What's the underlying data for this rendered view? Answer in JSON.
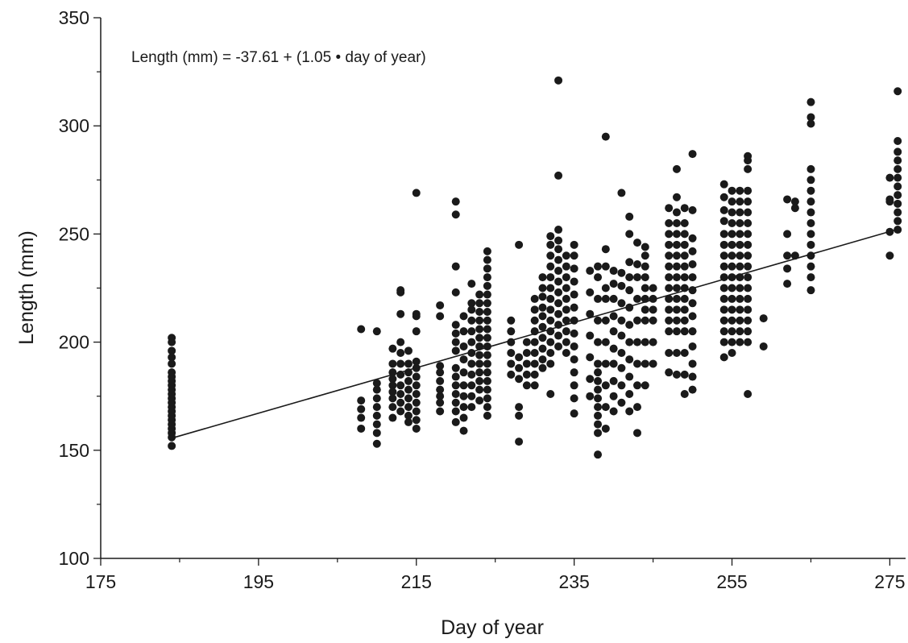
{
  "chart_data": {
    "type": "scatter",
    "title": "",
    "xlabel": "Day of year",
    "ylabel": "Length (mm)",
    "xlim": [
      175,
      277
    ],
    "ylim": [
      100,
      350
    ],
    "x_ticks": [
      175,
      195,
      215,
      235,
      255,
      275
    ],
    "x_ticks_display": [
      "175",
      "195",
      "215",
      "235",
      "255",
      "275"
    ],
    "y_ticks": [
      100,
      150,
      200,
      250,
      300,
      350
    ],
    "y_ticks_display": [
      "100",
      "150",
      "200",
      "250",
      "300",
      "350"
    ],
    "grid": false,
    "annotation": "Length (mm) = -37.61 + (1.05 • day of year)",
    "regression": {
      "intercept": -37.61,
      "slope": 1.05,
      "x_range": [
        184,
        276
      ]
    },
    "marker_color": "#1a1a1a",
    "groups": [
      {
        "x": 184,
        "values": [
          152,
          156,
          158,
          160,
          162,
          164,
          166,
          168,
          170,
          172,
          174,
          176,
          178,
          180,
          182,
          184,
          186,
          190,
          193,
          196,
          200,
          202
        ]
      },
      {
        "x": 208,
        "values": [
          160,
          165,
          169,
          173,
          206
        ]
      },
      {
        "x": 210,
        "values": [
          153,
          158,
          162,
          166,
          170,
          174,
          178,
          181,
          205
        ]
      },
      {
        "x": 212,
        "values": [
          165,
          170,
          174,
          177,
          180,
          183,
          186,
          190,
          197
        ]
      },
      {
        "x": 213,
        "values": [
          168,
          172,
          176,
          180,
          185,
          190,
          195,
          200,
          213,
          223,
          224
        ]
      },
      {
        "x": 214,
        "values": [
          163,
          166,
          170,
          174,
          178,
          182,
          186,
          190,
          196
        ]
      },
      {
        "x": 215,
        "values": [
          160,
          164,
          168,
          172,
          176,
          180,
          184,
          188,
          191,
          205,
          212,
          213,
          269
        ]
      },
      {
        "x": 218,
        "values": [
          168,
          172,
          175,
          178,
          182,
          186,
          189,
          212,
          217
        ]
      },
      {
        "x": 220,
        "values": [
          163,
          168,
          172,
          176,
          180,
          184,
          188,
          196,
          200,
          204,
          208,
          223,
          235,
          259,
          265
        ]
      },
      {
        "x": 221,
        "values": [
          159,
          165,
          170,
          175,
          180,
          186,
          192,
          198,
          205,
          212
        ]
      },
      {
        "x": 222,
        "values": [
          170,
          175,
          180,
          185,
          190,
          195,
          200,
          205,
          210,
          215,
          218,
          227
        ]
      },
      {
        "x": 223,
        "values": [
          173,
          178,
          182,
          186,
          190,
          194,
          198,
          202,
          206,
          210,
          214,
          218,
          222
        ]
      },
      {
        "x": 224,
        "values": [
          166,
          170,
          174,
          178,
          182,
          186,
          190,
          194,
          198,
          202,
          206,
          210,
          214,
          218,
          222,
          226,
          230,
          234,
          238,
          242
        ]
      },
      {
        "x": 227,
        "values": [
          185,
          190,
          195,
          200,
          205,
          210
        ]
      },
      {
        "x": 228,
        "values": [
          154,
          166,
          170,
          183,
          188,
          193,
          245
        ]
      },
      {
        "x": 229,
        "values": [
          180,
          185,
          190,
          195,
          200
        ]
      },
      {
        "x": 230,
        "values": [
          180,
          185,
          190,
          195,
          200,
          205,
          210,
          215,
          220
        ]
      },
      {
        "x": 231,
        "values": [
          188,
          192,
          197,
          202,
          207,
          212,
          216,
          221,
          225,
          230
        ]
      },
      {
        "x": 232,
        "values": [
          176,
          190,
          195,
          200,
          205,
          210,
          215,
          220,
          225,
          230,
          235,
          240,
          245,
          249
        ]
      },
      {
        "x": 233,
        "values": [
          198,
          203,
          208,
          213,
          218,
          223,
          228,
          233,
          238,
          243,
          247,
          252,
          277,
          321
        ]
      },
      {
        "x": 234,
        "values": [
          195,
          200,
          205,
          210,
          215,
          220,
          225,
          230,
          235,
          240
        ]
      },
      {
        "x": 235,
        "values": [
          167,
          174,
          180,
          186,
          192,
          198,
          204,
          210,
          216,
          222,
          228,
          234,
          240,
          245
        ]
      },
      {
        "x": 237,
        "values": [
          175,
          183,
          193,
          203,
          213,
          223,
          233
        ]
      },
      {
        "x": 238,
        "values": [
          148,
          158,
          162,
          166,
          170,
          174,
          178,
          182,
          186,
          190,
          200,
          210,
          220,
          230,
          235
        ]
      },
      {
        "x": 239,
        "values": [
          160,
          170,
          180,
          190,
          200,
          210,
          220,
          225,
          235,
          243,
          295
        ]
      },
      {
        "x": 240,
        "values": [
          168,
          175,
          182,
          190,
          197,
          205,
          212,
          220,
          227,
          233
        ]
      },
      {
        "x": 241,
        "values": [
          172,
          180,
          188,
          195,
          203,
          210,
          218,
          226,
          232,
          269
        ]
      },
      {
        "x": 242,
        "values": [
          168,
          176,
          184,
          192,
          200,
          208,
          216,
          224,
          230,
          237,
          250,
          258
        ]
      },
      {
        "x": 243,
        "values": [
          158,
          170,
          180,
          190,
          200,
          210,
          220,
          230,
          236,
          246
        ]
      },
      {
        "x": 244,
        "values": [
          180,
          190,
          200,
          210,
          215,
          220,
          225,
          230,
          235,
          240,
          244
        ]
      },
      {
        "x": 245,
        "values": [
          190,
          200,
          210,
          215,
          220,
          225
        ]
      },
      {
        "x": 247,
        "values": [
          186,
          195,
          205,
          210,
          215,
          220,
          225,
          230,
          235,
          240,
          245,
          250,
          255,
          262
        ]
      },
      {
        "x": 248,
        "values": [
          185,
          195,
          205,
          210,
          215,
          220,
          225,
          230,
          235,
          240,
          245,
          250,
          255,
          260,
          267,
          280
        ]
      },
      {
        "x": 249,
        "values": [
          176,
          185,
          195,
          205,
          210,
          215,
          220,
          225,
          230,
          235,
          240,
          245,
          250,
          255,
          262
        ]
      },
      {
        "x": 250,
        "values": [
          178,
          184,
          190,
          198,
          205,
          212,
          218,
          224,
          230,
          236,
          242,
          248,
          261,
          287
        ]
      },
      {
        "x": 254,
        "values": [
          193,
          200,
          205,
          210,
          215,
          220,
          225,
          230,
          235,
          240,
          245,
          250,
          256,
          261,
          267,
          273
        ]
      },
      {
        "x": 255,
        "values": [
          195,
          200,
          205,
          210,
          215,
          220,
          225,
          230,
          235,
          240,
          245,
          250,
          255,
          260,
          265,
          270
        ]
      },
      {
        "x": 256,
        "values": [
          200,
          205,
          210,
          215,
          220,
          225,
          230,
          235,
          240,
          245,
          250,
          255,
          260,
          265,
          270
        ]
      },
      {
        "x": 257,
        "values": [
          176,
          200,
          205,
          210,
          215,
          220,
          225,
          230,
          235,
          240,
          245,
          250,
          255,
          260,
          265,
          270,
          280,
          284,
          286
        ]
      },
      {
        "x": 259,
        "values": [
          198,
          211
        ]
      },
      {
        "x": 262,
        "values": [
          227,
          234,
          240,
          250,
          266
        ]
      },
      {
        "x": 263,
        "values": [
          240,
          262,
          265
        ]
      },
      {
        "x": 265,
        "values": [
          224,
          230,
          235,
          240,
          245,
          250,
          255,
          260,
          265,
          270,
          275,
          280,
          301,
          304,
          311
        ]
      },
      {
        "x": 275,
        "values": [
          240,
          251,
          265,
          266,
          276
        ]
      },
      {
        "x": 276,
        "values": [
          252,
          256,
          260,
          264,
          268,
          272,
          276,
          280,
          284,
          288,
          293,
          316
        ]
      }
    ]
  }
}
